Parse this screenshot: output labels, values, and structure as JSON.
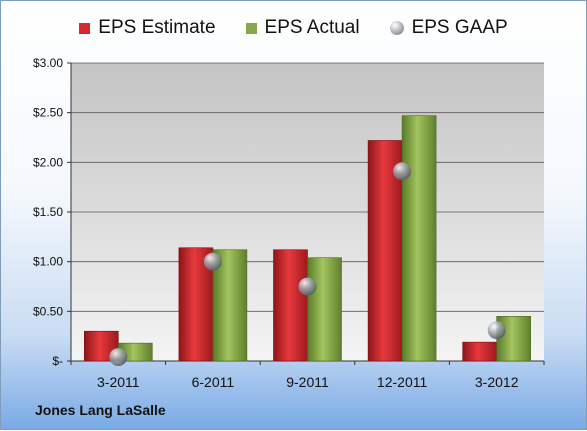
{
  "company": "Jones Lang LaSalle",
  "colors": {
    "estimate": "#d42a2f",
    "actual": "#86a84a",
    "gaap": "#9aa0a8"
  },
  "chart_data": {
    "type": "bar",
    "categories": [
      "3-2011",
      "6-2011",
      "9-2011",
      "12-2011",
      "3-2012"
    ],
    "series": [
      {
        "name": "EPS Estimate",
        "values": [
          0.3,
          1.14,
          1.12,
          2.22,
          0.19
        ]
      },
      {
        "name": "EPS Actual",
        "values": [
          0.18,
          1.12,
          1.04,
          2.47,
          0.45
        ]
      },
      {
        "name": "EPS GAAP",
        "marker": "sphere",
        "values": [
          0.04,
          1.0,
          0.75,
          1.91,
          0.31
        ]
      }
    ],
    "ylim": [
      0,
      3.0
    ],
    "yticks": [
      0,
      0.5,
      1.0,
      1.5,
      2.0,
      2.5,
      3.0
    ],
    "ytick_labels": [
      "$-",
      "$0.50",
      "$1.00",
      "$1.50",
      "$2.00",
      "$2.50",
      "$3.00"
    ],
    "title": "",
    "xlabel": "",
    "ylabel": "",
    "grid": true,
    "legend": "top-center"
  }
}
